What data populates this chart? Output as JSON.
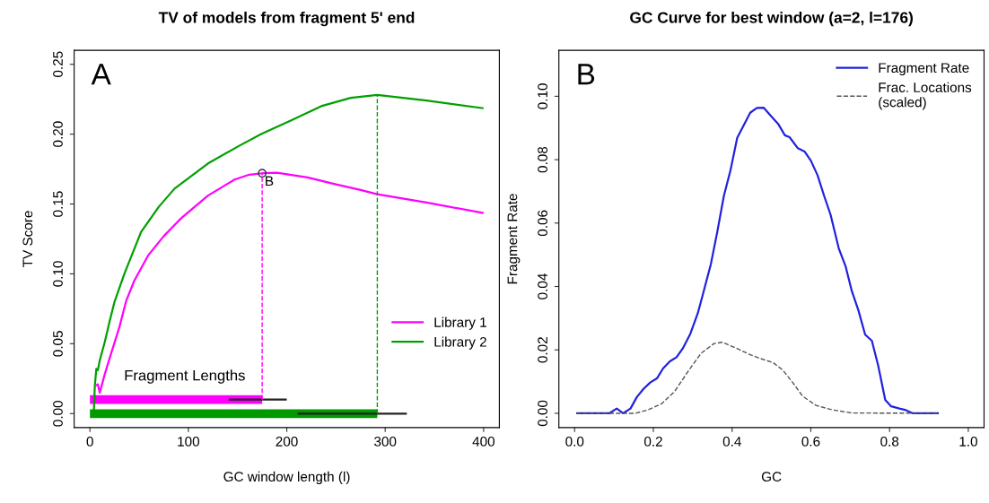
{
  "chart_data": [
    {
      "type": "line",
      "title": "TV of models from fragment 5' end",
      "xlabel": "GC window length (l)",
      "ylabel": "TV Score",
      "xlim": [
        -16,
        416
      ],
      "ylim": [
        -0.01,
        0.26
      ],
      "xticks": [
        0,
        100,
        200,
        300,
        400
      ],
      "yticks": [
        {
          "value": 0,
          "label": "0.00"
        },
        {
          "value": 0.05,
          "label": "0.05"
        },
        {
          "value": 0.1,
          "label": "0.10"
        },
        {
          "value": 0.15,
          "label": "0.15"
        },
        {
          "value": 0.2,
          "label": "0.20"
        },
        {
          "value": 0.25,
          "label": "0.25"
        }
      ],
      "grid": false,
      "legend": "right",
      "annotations": [
        "A",
        "Fragment Lengths",
        {
          "text": "B",
          "x": 175,
          "y": 0.172
        }
      ],
      "series": [
        {
          "name": "Library 1",
          "color": "#ff00ff",
          "x": [
            6,
            8,
            10,
            15,
            22,
            30,
            37,
            45,
            59,
            75,
            93,
            120,
            147,
            162,
            175,
            190,
            221,
            250,
            275,
            292,
            342,
            400
          ],
          "values": [
            0.02,
            0.021,
            0.015,
            0.028,
            0.044,
            0.062,
            0.081,
            0.095,
            0.113,
            0.127,
            0.14,
            0.156,
            0.1675,
            0.171,
            0.172,
            0.1724,
            0.169,
            0.164,
            0.16,
            0.157,
            0.151,
            0.1435
          ]
        },
        {
          "name": "Library 2",
          "color": "#00a000",
          "x": [
            4,
            5,
            6.5,
            8,
            10,
            15,
            20,
            25,
            35,
            52,
            70,
            86,
            120,
            150,
            174,
            205,
            235,
            265,
            292,
            342,
            400
          ],
          "values": [
            0.002,
            0.02,
            0.032,
            0.031,
            0.038,
            0.051,
            0.066,
            0.08,
            0.1,
            0.13,
            0.148,
            0.161,
            0.179,
            0.191,
            0.2,
            0.21,
            0.22,
            0.226,
            0.228,
            0.224,
            0.2185
          ]
        },
        {
          "color": "#ff00ff",
          "x": [
            0,
            175
          ],
          "values": [
            0.01,
            0.01
          ]
        },
        {
          "color": "#009900",
          "x": [
            0,
            292
          ],
          "values": [
            0,
            0
          ]
        },
        {
          "color": "#222222",
          "x": [
            141,
            200
          ],
          "values": [
            0.01,
            0.01
          ]
        },
        {
          "color": "#222222",
          "x": [
            211,
            322
          ],
          "values": [
            0,
            0
          ]
        },
        {
          "color": "#ff00ff",
          "line_style": "dashed",
          "x": [
            175,
            175
          ],
          "values": [
            0.01,
            0.172
          ]
        },
        {
          "color": "#00a000",
          "line_style": "dashed",
          "x": [
            292,
            292
          ],
          "values": [
            0,
            0.228
          ]
        },
        {
          "type": "scatter",
          "marker": "circle",
          "color": "#333333",
          "x": [
            175
          ],
          "values": [
            0.172
          ]
        }
      ]
    },
    {
      "type": "line",
      "title": "GC Curve for best window (a=2, l=176)",
      "xlabel": "GC",
      "ylabel": "Fragment Rate",
      "xlim": [
        -0.04,
        1.04
      ],
      "ylim": [
        -0.0045,
        0.1145
      ],
      "xticks": [
        {
          "value": 0,
          "label": "0.0"
        },
        {
          "value": 0.2,
          "label": "0.2"
        },
        {
          "value": 0.4,
          "label": "0.4"
        },
        {
          "value": 0.6,
          "label": "0.6"
        },
        {
          "value": 0.8,
          "label": "0.8"
        },
        {
          "value": 1,
          "label": "1.0"
        }
      ],
      "yticks": [
        {
          "value": 0,
          "label": "0.00"
        },
        {
          "value": 0.02,
          "label": "0.02"
        },
        {
          "value": 0.04,
          "label": "0.04"
        },
        {
          "value": 0.06,
          "label": "0.06"
        },
        {
          "value": 0.08,
          "label": "0.08"
        },
        {
          "value": 0.1,
          "label": "0.10"
        }
      ],
      "grid": false,
      "legend": "top right",
      "annotations": [
        "B"
      ],
      "series": [
        {
          "name": "Fragment Rate",
          "color": "#2222dd",
          "x": [
            0.004,
            0.088,
            0.107,
            0.123,
            0.142,
            0.158,
            0.175,
            0.192,
            0.209,
            0.225,
            0.242,
            0.259,
            0.275,
            0.294,
            0.313,
            0.329,
            0.346,
            0.362,
            0.379,
            0.396,
            0.413,
            0.446,
            0.463,
            0.48,
            0.497,
            0.517,
            0.534,
            0.546,
            0.567,
            0.584,
            0.6,
            0.617,
            0.634,
            0.65,
            0.671,
            0.688,
            0.704,
            0.721,
            0.738,
            0.755,
            0.771,
            0.789,
            0.804,
            0.825,
            0.839,
            0.859,
            0.925
          ],
          "values": [
            0,
            0,
            0.0015,
            0,
            0.0015,
            0.0051,
            0.0077,
            0.0097,
            0.011,
            0.0142,
            0.0164,
            0.0177,
            0.0205,
            0.0251,
            0.0316,
            0.039,
            0.047,
            0.057,
            0.0685,
            0.0767,
            0.0869,
            0.0948,
            0.0963,
            0.0964,
            0.094,
            0.0913,
            0.0877,
            0.0871,
            0.0836,
            0.0826,
            0.0797,
            0.0751,
            0.0685,
            0.0627,
            0.052,
            0.0465,
            0.0386,
            0.0324,
            0.0248,
            0.0229,
            0.0151,
            0.0042,
            0.0022,
            0.0015,
            0.0011,
            0,
            0
          ]
        },
        {
          "name": "Frac. Locations\n(scaled)",
          "color": "#555555",
          "line_style": "dashed",
          "x": [
            0.004,
            0.154,
            0.187,
            0.221,
            0.254,
            0.288,
            0.321,
            0.354,
            0.375,
            0.404,
            0.446,
            0.471,
            0.504,
            0.529,
            0.554,
            0.579,
            0.613,
            0.654,
            0.704,
            0.925
          ],
          "values": [
            0,
            0,
            0.0011,
            0.003,
            0.0069,
            0.0132,
            0.0189,
            0.022,
            0.0224,
            0.0209,
            0.0185,
            0.0173,
            0.016,
            0.0136,
            0.0097,
            0.0054,
            0.0025,
            0.0011,
            0.0001,
            0
          ]
        }
      ]
    }
  ]
}
